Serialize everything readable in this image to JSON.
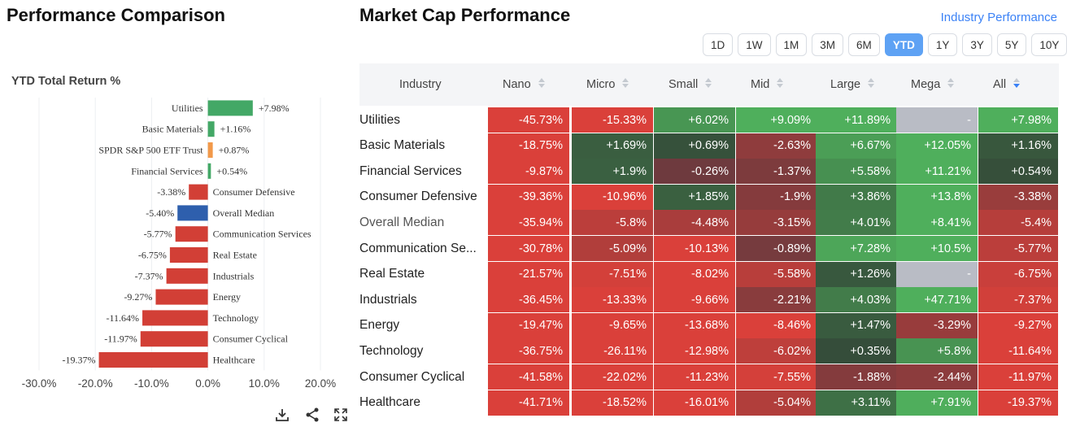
{
  "left_title": "Performance Comparison",
  "right_title": "Market Cap Performance",
  "industry_link": "Industry Performance",
  "periods": [
    "1D",
    "1W",
    "1M",
    "3M",
    "6M",
    "YTD",
    "1Y",
    "3Y",
    "5Y",
    "10Y"
  ],
  "active_period": "YTD",
  "colors": {
    "positive": "#43a866",
    "negative": "#d23f36",
    "highlight_orange": "#f2994a",
    "highlight_blue": "#2e5fad",
    "accent": "#5ea2f4"
  },
  "icons": [
    "download-icon",
    "share-icon",
    "expand-icon"
  ],
  "chart_data": {
    "type": "bar",
    "orientation": "horizontal",
    "title": "YTD Total Return %",
    "categories": [
      "Utilities",
      "Basic Materials",
      "SPDR S&P 500 ETF Trust",
      "Financial Services",
      "Consumer Defensive",
      "Overall Median",
      "Communication Services",
      "Real Estate",
      "Industrials",
      "Energy",
      "Technology",
      "Consumer Cyclical",
      "Healthcare"
    ],
    "values": [
      7.98,
      1.16,
      0.87,
      0.54,
      -3.38,
      -5.4,
      -5.77,
      -6.75,
      -7.37,
      -9.27,
      -11.64,
      -11.97,
      -19.37
    ],
    "value_labels": [
      "+7.98%",
      "+1.16%",
      "+0.87%",
      "+0.54%",
      "-3.38%",
      "-5.40%",
      "-5.77%",
      "-6.75%",
      "-7.37%",
      "-9.27%",
      "-11.64%",
      "-11.97%",
      "-19.37%"
    ],
    "bar_colors": [
      "#43a866",
      "#43a866",
      "#f2994a",
      "#43a866",
      "#d23f36",
      "#2e5fad",
      "#d23f36",
      "#d23f36",
      "#d23f36",
      "#d23f36",
      "#d23f36",
      "#d23f36",
      "#d23f36"
    ],
    "xlim": [
      -30,
      20
    ],
    "xticks": [
      "-30.0%",
      "-20.0%",
      "-10.0%",
      "0.0%",
      "10.0%",
      "20.0%"
    ],
    "grid": true
  },
  "heatmap": {
    "columns": [
      "Industry",
      "Nano",
      "Micro",
      "Small",
      "Mid",
      "Large",
      "Mega",
      "All"
    ],
    "rows": [
      {
        "name": "Utilities",
        "values": [
          "-45.73%",
          "-15.33%",
          "+6.02%",
          "+9.09%",
          "+11.89%",
          "-",
          "+7.98%"
        ]
      },
      {
        "name": "Basic Materials",
        "values": [
          "-18.75%",
          "+1.69%",
          "+0.69%",
          "-2.63%",
          "+6.67%",
          "+12.05%",
          "+1.16%"
        ]
      },
      {
        "name": "Financial Services",
        "values": [
          "-9.87%",
          "+1.9%",
          "-0.26%",
          "-1.37%",
          "+5.58%",
          "+11.21%",
          "+0.54%"
        ]
      },
      {
        "name": "Consumer Defensive",
        "values": [
          "-39.36%",
          "-10.96%",
          "+1.85%",
          "-1.9%",
          "+3.86%",
          "+13.8%",
          "-3.38%"
        ]
      },
      {
        "name": "Overall Median",
        "values": [
          "-35.94%",
          "-5.8%",
          "-4.48%",
          "-3.15%",
          "+4.01%",
          "+8.41%",
          "-5.4%"
        ]
      },
      {
        "name": "Communication Se...",
        "values": [
          "-30.78%",
          "-5.09%",
          "-10.13%",
          "-0.89%",
          "+7.28%",
          "+10.5%",
          "-5.77%"
        ]
      },
      {
        "name": "Real Estate",
        "values": [
          "-21.57%",
          "-7.51%",
          "-8.02%",
          "-5.58%",
          "+1.26%",
          "-",
          "-6.75%"
        ]
      },
      {
        "name": "Industrials",
        "values": [
          "-36.45%",
          "-13.33%",
          "-9.66%",
          "-2.21%",
          "+4.03%",
          "+47.71%",
          "-7.37%"
        ]
      },
      {
        "name": "Energy",
        "values": [
          "-19.47%",
          "-9.65%",
          "-13.68%",
          "-8.46%",
          "+1.47%",
          "-3.29%",
          "-9.27%"
        ]
      },
      {
        "name": "Technology",
        "values": [
          "-36.75%",
          "-26.11%",
          "-12.98%",
          "-6.02%",
          "+0.35%",
          "+5.8%",
          "-11.64%"
        ]
      },
      {
        "name": "Consumer Cyclical",
        "values": [
          "-41.58%",
          "-22.02%",
          "-11.23%",
          "-7.55%",
          "-1.88%",
          "-2.44%",
          "-11.97%"
        ]
      },
      {
        "name": "Healthcare",
        "values": [
          "-41.71%",
          "-18.52%",
          "-16.01%",
          "-5.04%",
          "+3.11%",
          "+7.91%",
          "-19.37%"
        ]
      }
    ]
  }
}
